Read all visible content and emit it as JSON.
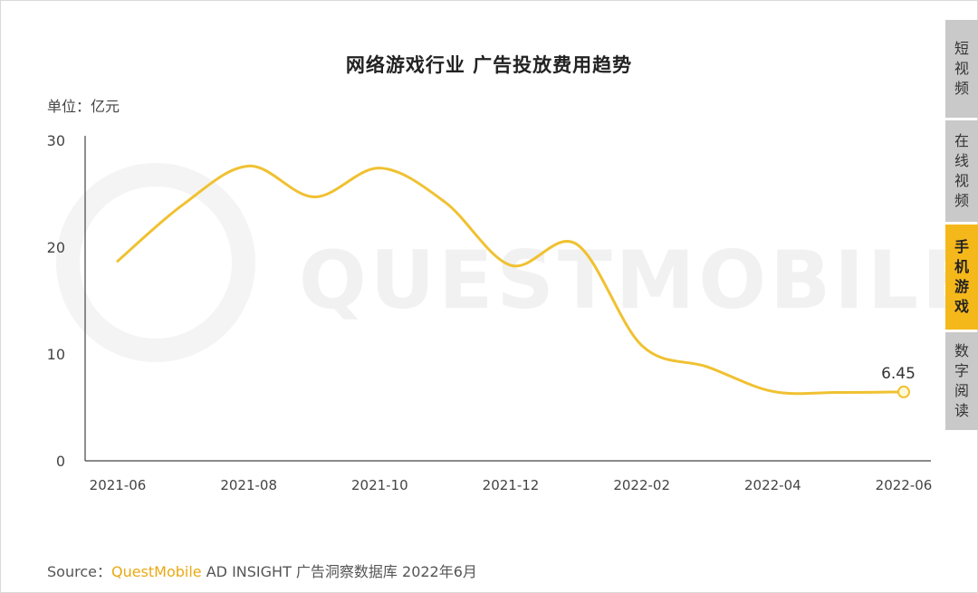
{
  "chart_data": {
    "type": "line",
    "title": "网络游戏行业 广告投放费用趋势",
    "unit_label": "单位：亿元",
    "x": [
      "2021-06",
      "2021-07",
      "2021-08",
      "2021-09",
      "2021-10",
      "2021-11",
      "2021-12",
      "2022-01",
      "2022-02",
      "2022-03",
      "2022-04",
      "2022-05",
      "2022-06"
    ],
    "x_tick_labels": [
      "2021-06",
      "2021-08",
      "2021-10",
      "2021-12",
      "2022-02",
      "2022-04",
      "2022-06"
    ],
    "y_ticks": [
      "0",
      "10",
      "20",
      "30"
    ],
    "ylim": [
      0,
      30
    ],
    "series": [
      {
        "values": [
          18.7,
          24.0,
          27.6,
          24.7,
          27.4,
          24.2,
          18.3,
          20.3,
          10.8,
          8.8,
          6.5,
          6.4,
          6.45
        ]
      }
    ],
    "annotations": [
      {
        "x": "2022-06",
        "label": "6.45"
      }
    ],
    "line_color": "#f0c131",
    "grid": false,
    "watermark": "QUESTMOBILE"
  },
  "side_tabs": [
    {
      "chars": [
        "短",
        "视",
        "频"
      ],
      "active": false
    },
    {
      "chars": [
        "在",
        "线",
        "视",
        "频"
      ],
      "active": false
    },
    {
      "chars": [
        "手",
        "机",
        "游",
        "戏"
      ],
      "active": true
    },
    {
      "chars": [
        "数",
        "字",
        "阅",
        "读"
      ],
      "active": false
    }
  ],
  "source": {
    "prefix": "Source：",
    "brand": "QuestMobile",
    "rest": " AD INSIGHT 广告洞察数据库 2022年6月"
  }
}
